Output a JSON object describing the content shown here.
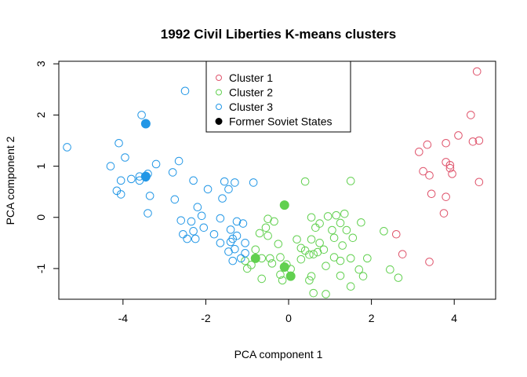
{
  "chart_data": {
    "type": "scatter",
    "title": "1992 Civil Liberties K-means clusters",
    "xlabel": "PCA component 1",
    "ylabel": "PCA component 2",
    "xlim": [
      -5.55,
      5.0
    ],
    "ylim": [
      -1.6,
      3.05
    ],
    "xticks": [
      -4,
      -2,
      0,
      2,
      4
    ],
    "yticks": [
      -1,
      0,
      1,
      2,
      3
    ],
    "legend_position": "top-center",
    "legend": [
      {
        "label": "Cluster 1",
        "color": "#DF536B",
        "marker": "open-circle"
      },
      {
        "label": "Cluster 2",
        "color": "#61D04F",
        "marker": "open-circle"
      },
      {
        "label": "Cluster 3",
        "color": "#2297E6",
        "marker": "open-circle"
      },
      {
        "label": "Former Soviet States",
        "color": "#000000",
        "marker": "filled-circle"
      }
    ],
    "series": [
      {
        "name": "Cluster 1",
        "color": "#DF536B",
        "points": [
          [
            4.55,
            2.85
          ],
          [
            4.4,
            2.0
          ],
          [
            4.1,
            1.6
          ],
          [
            4.45,
            1.48
          ],
          [
            4.6,
            1.5
          ],
          [
            3.15,
            1.28
          ],
          [
            3.35,
            1.42
          ],
          [
            3.8,
            1.45
          ],
          [
            3.8,
            1.08
          ],
          [
            3.9,
            1.02
          ],
          [
            3.9,
            0.96
          ],
          [
            3.25,
            0.9
          ],
          [
            3.4,
            0.82
          ],
          [
            3.95,
            0.85
          ],
          [
            4.6,
            0.69
          ],
          [
            3.45,
            0.46
          ],
          [
            3.8,
            0.4
          ],
          [
            3.75,
            0.08
          ],
          [
            2.6,
            -0.33
          ],
          [
            2.75,
            -0.72
          ],
          [
            3.4,
            -0.87
          ]
        ]
      },
      {
        "name": "Cluster 2",
        "color": "#61D04F",
        "points": [
          [
            0.4,
            0.7
          ],
          [
            1.5,
            0.71
          ],
          [
            0.55,
            0.0
          ],
          [
            0.95,
            0.02
          ],
          [
            1.15,
            0.04
          ],
          [
            1.35,
            0.07
          ],
          [
            -0.5,
            -0.03
          ],
          [
            -0.35,
            -0.08
          ],
          [
            0.75,
            -0.12
          ],
          [
            1.25,
            -0.11
          ],
          [
            1.75,
            -0.1
          ],
          [
            -0.55,
            -0.2
          ],
          [
            0.65,
            -0.2
          ],
          [
            1.05,
            -0.25
          ],
          [
            1.4,
            -0.25
          ],
          [
            2.3,
            -0.27
          ],
          [
            -0.7,
            -0.31
          ],
          [
            -0.5,
            -0.36
          ],
          [
            0.2,
            -0.43
          ],
          [
            0.55,
            -0.43
          ],
          [
            1.1,
            -0.4
          ],
          [
            1.55,
            -0.4
          ],
          [
            -0.25,
            -0.52
          ],
          [
            0.75,
            -0.5
          ],
          [
            0.3,
            -0.6
          ],
          [
            1.3,
            -0.55
          ],
          [
            -0.8,
            -0.63
          ],
          [
            0.4,
            -0.65
          ],
          [
            0.7,
            -0.68
          ],
          [
            0.85,
            -0.63
          ],
          [
            0.6,
            -0.72
          ],
          [
            0.5,
            -0.73
          ],
          [
            1.1,
            -0.78
          ],
          [
            1.5,
            -0.8
          ],
          [
            1.9,
            -0.8
          ],
          [
            -0.65,
            -0.8
          ],
          [
            -0.45,
            -0.8
          ],
          [
            -0.2,
            -0.78
          ],
          [
            0.3,
            -0.82
          ],
          [
            -1.05,
            -0.85
          ],
          [
            1.25,
            -0.85
          ],
          [
            -0.4,
            -0.9
          ],
          [
            -0.9,
            -0.93
          ],
          [
            -0.05,
            -0.92
          ],
          [
            0.9,
            -0.95
          ],
          [
            -1.0,
            -1.0
          ],
          [
            0.05,
            -1.01
          ],
          [
            1.7,
            -1.02
          ],
          [
            2.45,
            -1.02
          ],
          [
            -0.2,
            -1.12
          ],
          [
            1.25,
            -1.14
          ],
          [
            0.55,
            -1.15
          ],
          [
            1.8,
            -1.15
          ],
          [
            2.65,
            -1.18
          ],
          [
            -0.65,
            -1.2
          ],
          [
            -0.15,
            -1.23
          ],
          [
            0.5,
            -1.23
          ],
          [
            1.5,
            -1.35
          ],
          [
            0.6,
            -1.48
          ],
          [
            0.9,
            -1.5
          ]
        ]
      },
      {
        "name": "Cluster 3",
        "color": "#2297E6",
        "points": [
          [
            -2.5,
            2.47
          ],
          [
            -3.55,
            2.0
          ],
          [
            -5.35,
            1.37
          ],
          [
            -4.1,
            1.45
          ],
          [
            -3.95,
            1.17
          ],
          [
            -4.3,
            1.0
          ],
          [
            -3.2,
            1.04
          ],
          [
            -2.65,
            1.1
          ],
          [
            -2.8,
            0.88
          ],
          [
            -3.6,
            0.8
          ],
          [
            -3.4,
            0.85
          ],
          [
            -4.05,
            0.72
          ],
          [
            -3.8,
            0.75
          ],
          [
            -3.6,
            0.72
          ],
          [
            -3.45,
            0.78
          ],
          [
            -2.3,
            0.72
          ],
          [
            -1.55,
            0.7
          ],
          [
            -1.3,
            0.68
          ],
          [
            -0.85,
            0.68
          ],
          [
            -1.45,
            0.55
          ],
          [
            -1.95,
            0.55
          ],
          [
            -4.15,
            0.52
          ],
          [
            -4.05,
            0.45
          ],
          [
            -3.35,
            0.42
          ],
          [
            -2.75,
            0.35
          ],
          [
            -1.6,
            0.37
          ],
          [
            -2.2,
            0.2
          ],
          [
            -3.4,
            0.08
          ],
          [
            -2.1,
            0.03
          ],
          [
            -1.65,
            -0.02
          ],
          [
            -2.6,
            -0.06
          ],
          [
            -2.35,
            -0.08
          ],
          [
            -1.25,
            -0.08
          ],
          [
            -1.1,
            -0.12
          ],
          [
            -2.05,
            -0.2
          ],
          [
            -1.4,
            -0.24
          ],
          [
            -2.3,
            -0.27
          ],
          [
            -2.55,
            -0.33
          ],
          [
            -1.8,
            -0.33
          ],
          [
            -1.25,
            -0.36
          ],
          [
            -2.45,
            -0.42
          ],
          [
            -2.25,
            -0.42
          ],
          [
            -1.35,
            -0.42
          ],
          [
            -1.4,
            -0.48
          ],
          [
            -1.65,
            -0.5
          ],
          [
            -1.05,
            -0.5
          ],
          [
            -1.3,
            -0.62
          ],
          [
            -1.45,
            -0.67
          ],
          [
            -1.05,
            -0.7
          ],
          [
            -1.35,
            -0.85
          ],
          [
            -1.15,
            -0.8
          ]
        ]
      },
      {
        "name": "Former Soviet States",
        "points": [
          [
            -3.45,
            1.83,
            "#2297E6"
          ],
          [
            -3.45,
            0.8,
            "#2297E6"
          ],
          [
            -0.1,
            0.24,
            "#61D04F"
          ],
          [
            -0.8,
            -0.8,
            "#61D04F"
          ],
          [
            -0.1,
            -0.97,
            "#61D04F"
          ],
          [
            0.05,
            -1.15,
            "#61D04F"
          ]
        ]
      }
    ]
  }
}
